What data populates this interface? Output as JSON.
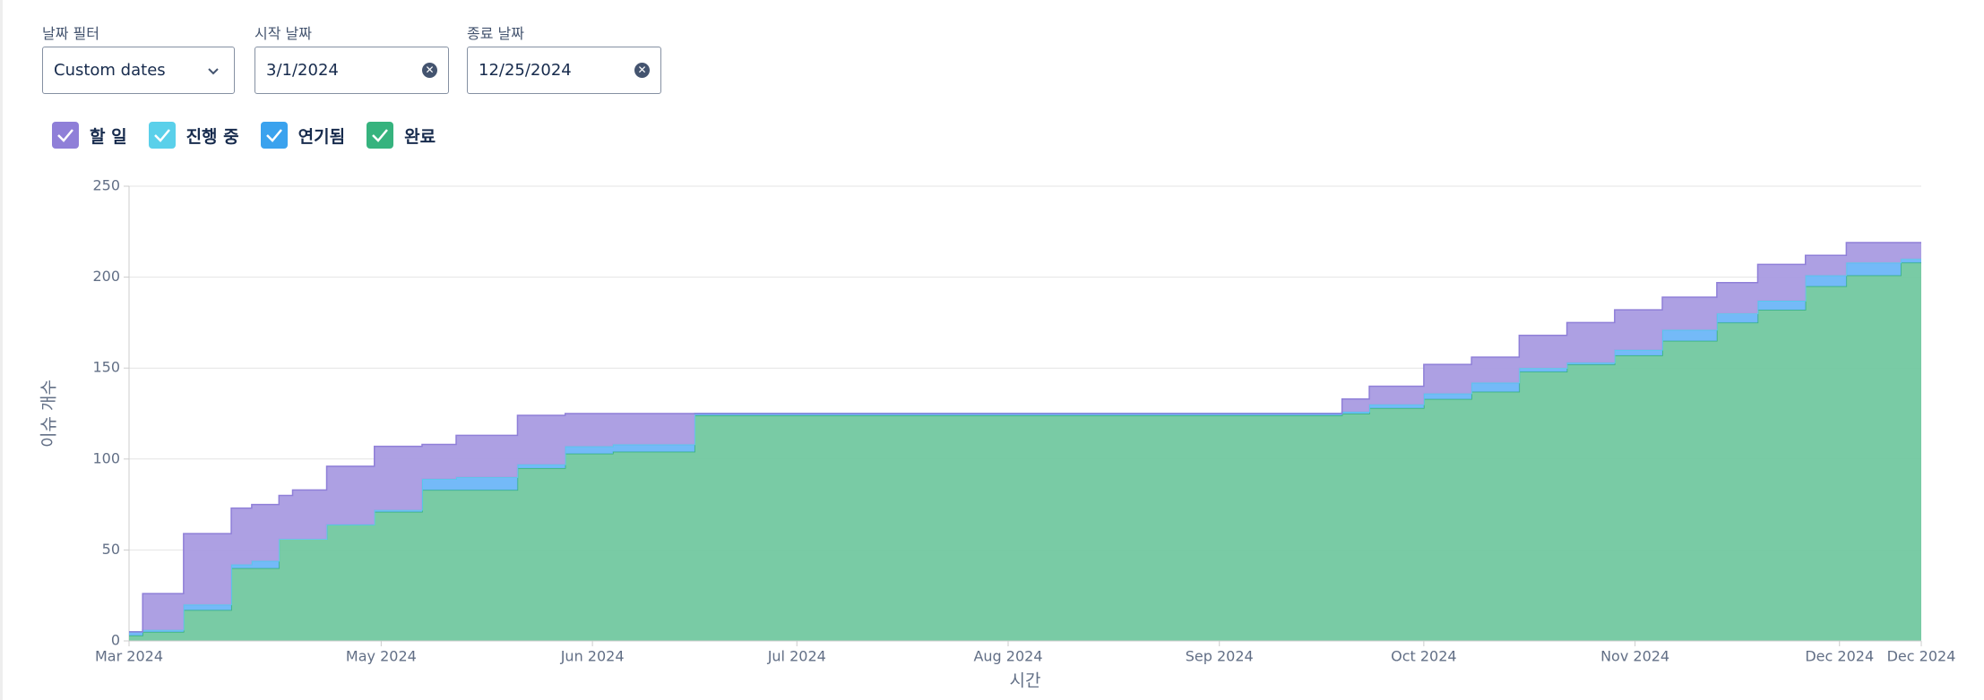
{
  "filters": {
    "date_filter": {
      "label": "날짜 필터",
      "value": "Custom dates"
    },
    "start_date": {
      "label": "시작 날짜",
      "value": "3/1/2024"
    },
    "end_date": {
      "label": "종료 날짜",
      "value": "12/25/2024"
    }
  },
  "chart_data": {
    "type": "area",
    "stacked": true,
    "step": true,
    "xlabel": "시간",
    "ylabel": "이슈 개수",
    "x": [
      "2024-03-25",
      "2024-03-27",
      "2024-04-02",
      "2024-04-09",
      "2024-04-12",
      "2024-04-16",
      "2024-04-18",
      "2024-04-23",
      "2024-04-30",
      "2024-05-07",
      "2024-05-12",
      "2024-05-21",
      "2024-05-28",
      "2024-06-04",
      "2024-06-16",
      "2024-09-19",
      "2024-09-23",
      "2024-10-01",
      "2024-10-08",
      "2024-10-15",
      "2024-10-22",
      "2024-10-29",
      "2024-11-05",
      "2024-11-13",
      "2024-11-19",
      "2024-11-26",
      "2024-12-02",
      "2024-12-10"
    ],
    "series": [
      {
        "name": "할 일",
        "color": "#a99be2",
        "stroke": "#8f7fd8",
        "values": [
          0,
          20,
          39,
          31,
          31,
          24,
          27,
          32,
          35,
          19,
          23,
          27,
          18,
          17,
          0,
          7,
          10,
          16,
          14,
          18,
          22,
          22,
          18,
          17,
          20,
          11,
          11,
          9
        ]
      },
      {
        "name": "진행 중",
        "color": "#7fe0f3",
        "stroke": "#5ad0ea",
        "values": [
          0,
          0,
          0,
          0,
          0,
          0,
          0,
          0,
          0,
          0,
          0,
          0,
          0,
          0,
          0,
          0,
          0,
          0,
          0,
          0,
          0,
          0,
          0,
          0,
          0,
          0,
          0,
          0
        ]
      },
      {
        "name": "연기됨",
        "color": "#6db6f8",
        "stroke": "#3aa2ee",
        "values": [
          2,
          1,
          3,
          2,
          4,
          0,
          0,
          0,
          1,
          6,
          7,
          2,
          4,
          4,
          1,
          1,
          2,
          3,
          5,
          2,
          1,
          3,
          6,
          5,
          5,
          6,
          7,
          2
        ]
      },
      {
        "name": "완료",
        "color": "#72c8a0",
        "stroke": "#36b37e",
        "values": [
          3,
          5,
          17,
          40,
          40,
          56,
          56,
          64,
          71,
          83,
          83,
          95,
          103,
          104,
          124,
          125,
          128,
          133,
          137,
          148,
          152,
          157,
          165,
          175,
          182,
          195,
          201,
          208
        ]
      }
    ],
    "xlim": [
      "2024-03-25",
      "2024-12-13"
    ],
    "xticks": [
      {
        "value": "2024-03-25",
        "label": "Mar 2024"
      },
      {
        "value": "2024-05-01",
        "label": "May 2024"
      },
      {
        "value": "2024-06-01",
        "label": "Jun 2024"
      },
      {
        "value": "2024-07-01",
        "label": "Jul 2024"
      },
      {
        "value": "2024-08-01",
        "label": "Aug 2024"
      },
      {
        "value": "2024-09-01",
        "label": "Sep 2024"
      },
      {
        "value": "2024-10-01",
        "label": "Oct 2024"
      },
      {
        "value": "2024-11-01",
        "label": "Nov 2024"
      },
      {
        "value": "2024-12-01",
        "label": "Dec 2024"
      },
      {
        "value": "2024-12-13",
        "label": "Dec 2024"
      }
    ],
    "ylim": [
      0,
      250
    ],
    "yticks": [
      0,
      50,
      100,
      150,
      200,
      250
    ],
    "grid": true
  }
}
